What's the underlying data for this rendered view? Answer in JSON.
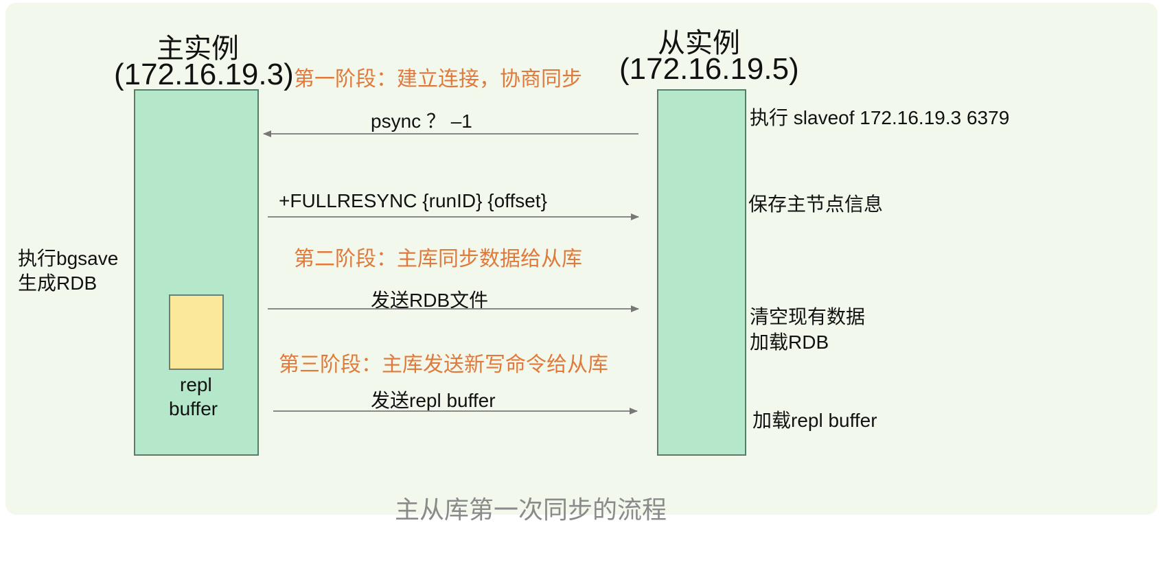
{
  "master": {
    "title": "主实例",
    "ip": "(172.16.19.3)",
    "action_bgsave": [
      "执行bgsave",
      "生成RDB"
    ],
    "buffer_label": [
      "repl",
      "buffer"
    ]
  },
  "slave": {
    "title": "从实例",
    "ip": "(172.16.19.5)",
    "actions": {
      "slaveof": "执行 slaveof  172.16.19.3  6379",
      "save_info": "保存主节点信息",
      "clear_load": [
        "清空现有数据",
        "加载RDB"
      ],
      "load_buffer": "加载repl buffer"
    }
  },
  "phases": {
    "phase1": "第一阶段：建立连接，协商同步",
    "phase2": "第二阶段：主库同步数据给从库",
    "phase3": "第三阶段：主库发送新写命令给从库"
  },
  "messages": {
    "psync": "psync ？ –1",
    "fullresync": "+FULLRESYNC {runID} {offset}",
    "send_rdb": "发送RDB文件",
    "send_buffer": "发送repl buffer"
  },
  "caption": "主从库第一次同步的流程",
  "colors": {
    "panel": "#f2f8ec",
    "instance_bar": "#b5e7cb",
    "repl_buffer": "#fbe89a",
    "phase_text": "#e07a3c",
    "arrow": "#777777"
  }
}
